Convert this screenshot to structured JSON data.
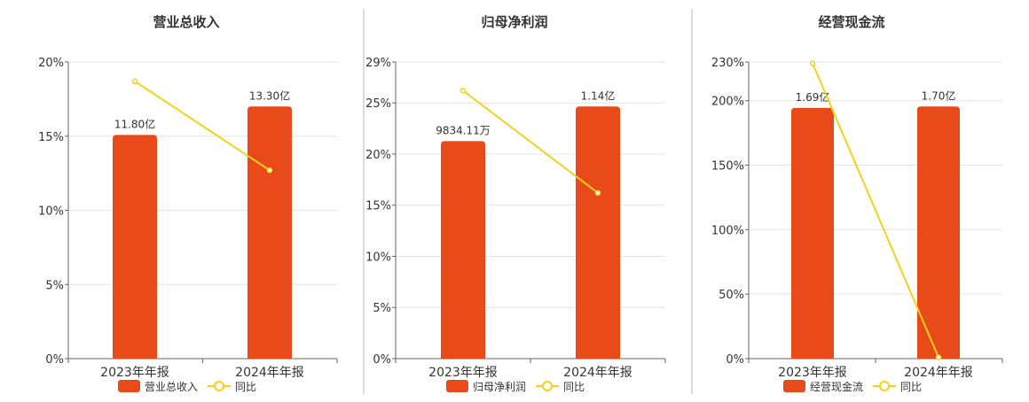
{
  "chart_data": [
    {
      "type": "bar",
      "title": "营业总收入",
      "categories": [
        "2023年年报",
        "2024年年报"
      ],
      "bar_series": {
        "name": "营业总收入",
        "values": [
          11.8,
          13.3
        ],
        "labels": [
          "11.80亿",
          "13.30亿"
        ],
        "unit": "亿"
      },
      "line_series": {
        "name": "同比",
        "values": [
          18.7,
          12.7
        ],
        "unit": "%"
      },
      "ylim": [
        0,
        20
      ],
      "yticks": [
        0,
        5,
        10,
        15,
        20
      ],
      "ytick_labels": [
        "0%",
        "5%",
        "10%",
        "15%",
        "20%"
      ]
    },
    {
      "type": "bar",
      "title": "归母净利润",
      "categories": [
        "2023年年报",
        "2024年年报"
      ],
      "bar_series": {
        "name": "归母净利润",
        "values": [
          0.983411,
          1.14
        ],
        "labels": [
          "9834.11万",
          "1.14亿"
        ],
        "unit": "亿"
      },
      "line_series": {
        "name": "同比",
        "values": [
          26.2,
          16.2
        ],
        "unit": "%"
      },
      "ylim": [
        0,
        29
      ],
      "yticks": [
        0,
        5,
        10,
        15,
        20,
        25,
        29
      ],
      "ytick_labels": [
        "0%",
        "5%",
        "10%",
        "15%",
        "20%",
        "25%",
        "29%"
      ]
    },
    {
      "type": "bar",
      "title": "经营现金流",
      "categories": [
        "2023年年报",
        "2024年年报"
      ],
      "bar_series": {
        "name": "经营现金流",
        "values": [
          1.69,
          1.7
        ],
        "labels": [
          "1.69亿",
          "1.70亿"
        ],
        "unit": "亿"
      },
      "line_series": {
        "name": "同比",
        "values": [
          229,
          1
        ],
        "unit": "%"
      },
      "ylim": [
        0,
        230
      ],
      "yticks": [
        0,
        50,
        100,
        150,
        200,
        230
      ],
      "ytick_labels": [
        "0%",
        "50%",
        "100%",
        "150%",
        "200%",
        "230%"
      ]
    }
  ],
  "colors": {
    "bar": "#e84a1a",
    "line": "#f2d21a",
    "grid": "#e4e4ee",
    "axis": "#666666",
    "divider": "#bbbbbb"
  }
}
